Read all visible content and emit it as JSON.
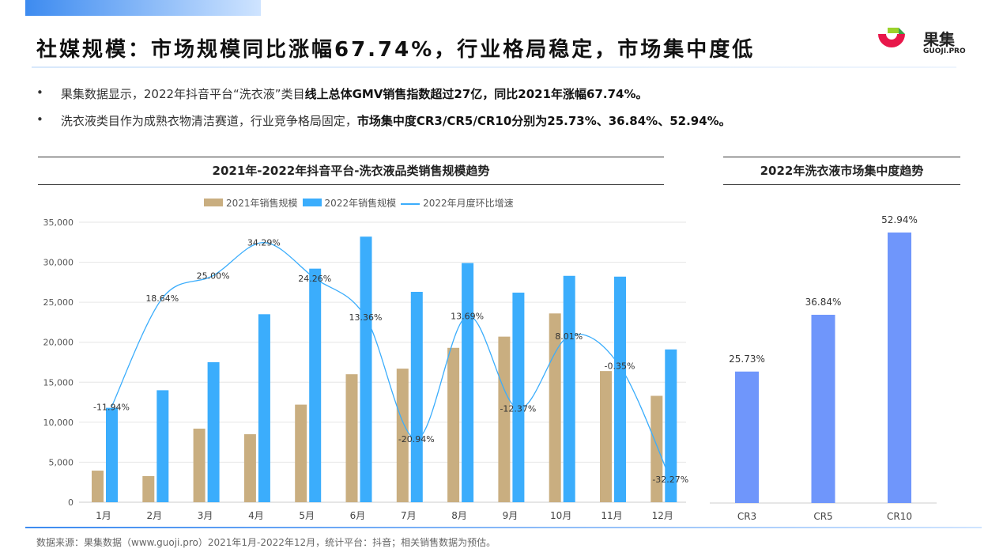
{
  "header": {
    "title": "社媒规模：市场规模同比涨幅67.74%，行业格局稳定，市场集中度低",
    "logo_text": "果集",
    "logo_sub": "GUOJI.PRO"
  },
  "bullets": [
    {
      "normal": "果集数据显示，2022年抖音平台“洗衣液”类目",
      "bold": "线上总体GMV销售指数超过27亿，同比2021年涨幅67.74%。"
    },
    {
      "normal": "洗衣液类目作为成熟衣物清洁赛道，行业竞争格局固定，",
      "bold": "市场集中度CR3/CR5/CR10分别为25.73%、36.84%、52.94%。"
    }
  ],
  "footer": "数据来源：果集数据（www.guoji.pro）2021年1月-2022年12月，统计平台：抖音；相关销售数据为预估。",
  "colors": {
    "bar2021": "#c9ae80",
    "bar2022": "#3badfc",
    "line": "#3badfc",
    "cr": "#6f96fb"
  },
  "chart_data": [
    {
      "type": "bar",
      "title": "2021年-2022年抖音平台-洗衣液品类销售规模趋势",
      "categories": [
        "1月",
        "2月",
        "3月",
        "4月",
        "5月",
        "6月",
        "7月",
        "8月",
        "9月",
        "10月",
        "11月",
        "12月"
      ],
      "yticks": [
        "0",
        "5,000",
        "10,000",
        "15,000",
        "20,000",
        "25,000",
        "30,000",
        "35,000"
      ],
      "ylim": [
        0,
        35000
      ],
      "series": [
        {
          "name": "2021年销售规模",
          "type": "bar",
          "values": [
            3950,
            3270,
            9200,
            8500,
            12200,
            16000,
            16700,
            19300,
            20700,
            23600,
            16400,
            13300
          ]
        },
        {
          "name": "2022年销售规模",
          "type": "bar",
          "values": [
            11800,
            14000,
            17500,
            23500,
            29200,
            33200,
            26300,
            29900,
            26200,
            28300,
            28200,
            19100
          ]
        },
        {
          "name": "2022年月度环比增速",
          "type": "line",
          "values": [
            -11.94,
            18.64,
            25.0,
            34.29,
            24.26,
            13.36,
            -20.94,
            13.69,
            -12.37,
            8.01,
            -0.35,
            -32.27
          ],
          "labels": [
            "-11.94%",
            "18.64%",
            "25.00%",
            "34.29%",
            "24.26%",
            "13.36%",
            "-20.94%",
            "13.69%",
            "-12.37%",
            "8.01%",
            "-0.35%",
            "-32.27%"
          ]
        }
      ]
    },
    {
      "type": "bar",
      "title": "2022年洗衣液市场集中度趋势",
      "categories": [
        "CR3",
        "CR5",
        "CR10"
      ],
      "values": [
        25.73,
        36.84,
        52.94
      ],
      "labels": [
        "25.73%",
        "36.84%",
        "52.94%"
      ]
    }
  ]
}
